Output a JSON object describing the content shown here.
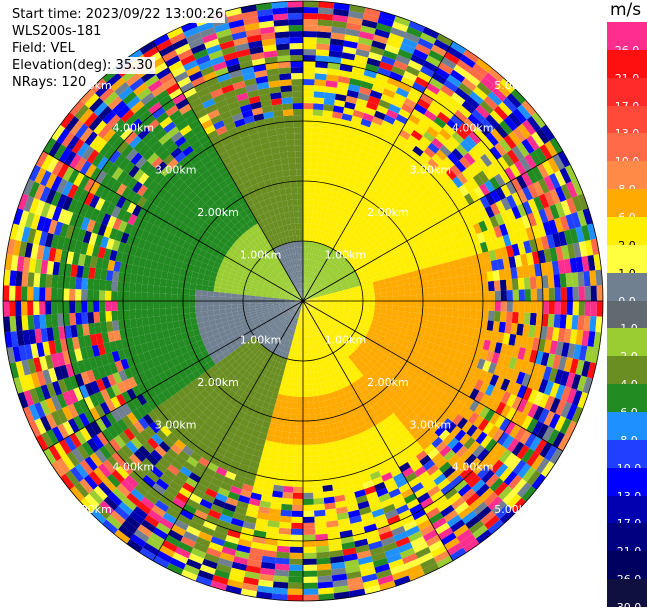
{
  "info": {
    "start_time": "Start time: 2023/09/22 13:00:26",
    "instrument": "WLS200s-181",
    "field": "Field: VEL",
    "elevation": "Elevation(deg): 35.30",
    "nrays": "NRays: 120"
  },
  "chart_data": {
    "type": "heatmap",
    "projection": "polar",
    "field": "VEL",
    "n_rays": 120,
    "elevation_deg": 35.3,
    "range_rings": [
      "1.00km",
      "2.00km",
      "3.00km",
      "4.00km",
      "5.00km"
    ],
    "colorbar": {
      "unit": "m/s",
      "ticks": [
        "26.0",
        "21.0",
        "17.0",
        "13.0",
        "10.0",
        "8.0",
        "6.0",
        "2.0",
        "1.0",
        "0.0",
        "-1.0",
        "-2.0",
        "-4.0",
        "-6.0",
        "-8.0",
        "-10.0",
        "-13.0",
        "-17.0",
        "-21.0",
        "-26.0",
        "-30.0"
      ],
      "colors": [
        "#ff2e8e",
        "#ff1010",
        "#ff2a2a",
        "#ff4a3a",
        "#ff6a48",
        "#ff8a48",
        "#ffaa00",
        "#ffee00",
        "#ffff40",
        "#708090",
        "#606a70",
        "#9acd32",
        "#6b8e23",
        "#228b22",
        "#1e90ff",
        "#2040ff",
        "#0000ff",
        "#0000b0",
        "#000080",
        "#000060",
        "#101040"
      ]
    }
  }
}
